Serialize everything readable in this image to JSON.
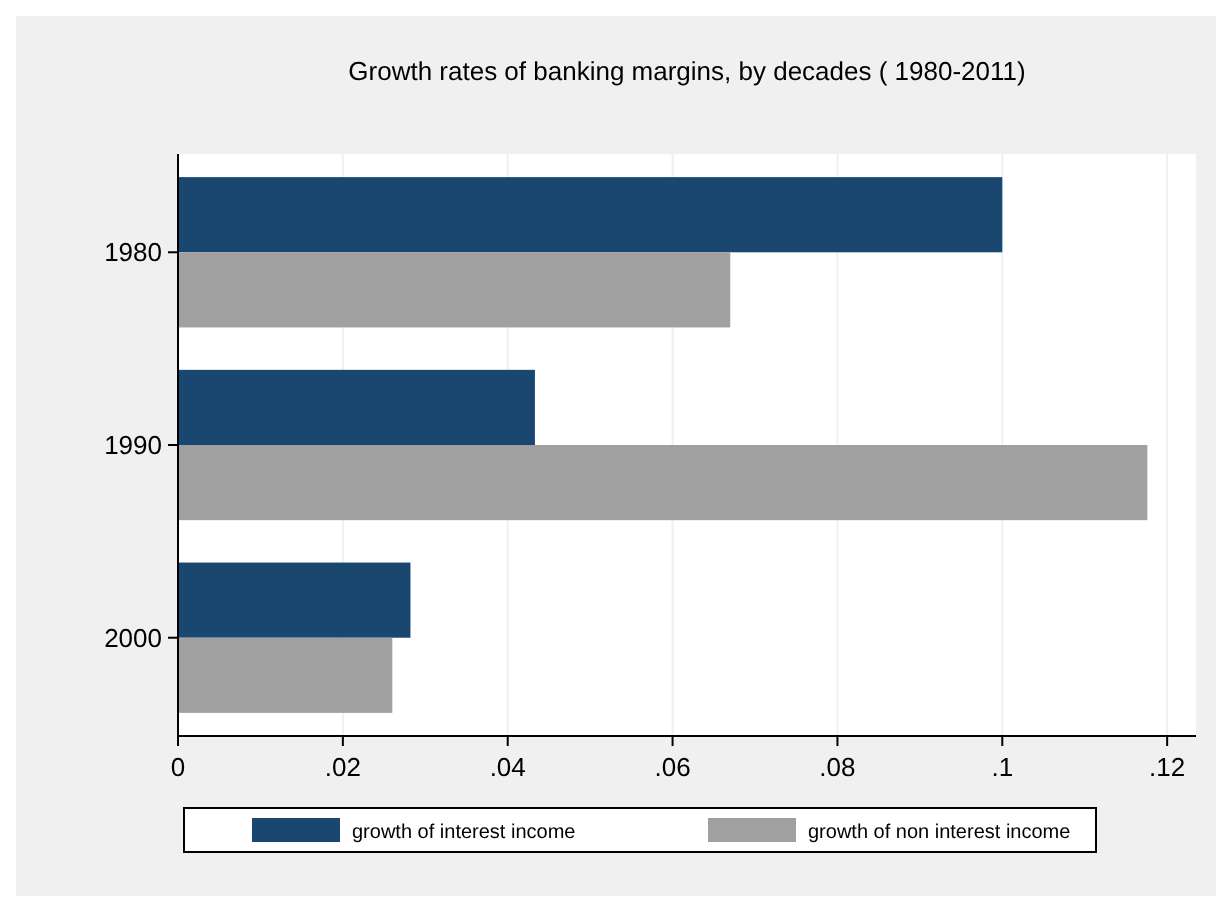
{
  "chart_data": {
    "type": "bar",
    "orientation": "horizontal",
    "title": "Growth rates of banking margins, by decades (  1980-2011)",
    "categories": [
      "1980",
      "1990",
      "2000"
    ],
    "series": [
      {
        "name": "growth of interest income",
        "color": "#1a476f",
        "values": [
          0.1,
          0.0433,
          0.0282
        ]
      },
      {
        "name": "growth of non interest income",
        "color": "#a0a0a0",
        "values": [
          0.067,
          0.1176,
          0.026
        ]
      }
    ],
    "xlim": [
      0,
      0.1235
    ],
    "xticks": [
      0,
      {
        "value": 0.02,
        "label": ".02"
      },
      {
        "value": 0.04,
        "label": ".04"
      },
      {
        "value": 0.06,
        "label": ".06"
      },
      {
        "value": 0.08,
        "label": ".08"
      },
      {
        "value": 0.1,
        "label": ".1"
      },
      {
        "value": 0.12,
        "label": ".12"
      }
    ],
    "grid": "x",
    "legend": "bottom"
  }
}
